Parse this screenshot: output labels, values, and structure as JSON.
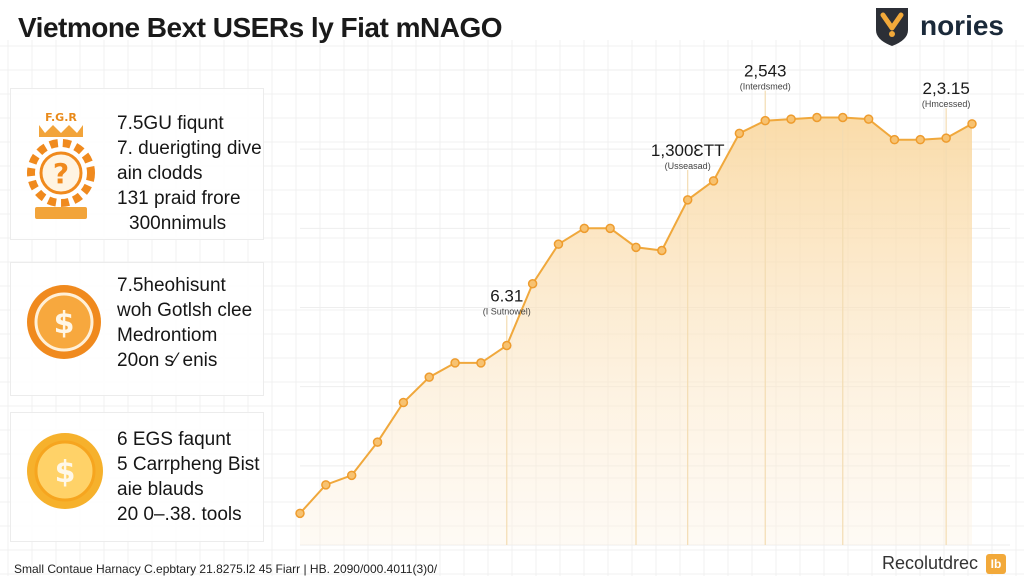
{
  "header": {
    "title": "Vietmone Bext USERs ly Fiat mNAGO",
    "brand": "nories"
  },
  "sidebar": {
    "panels": [
      {
        "icon": "gear-dollar-icon",
        "lines": [
          "7.5GU fiqunt",
          "7. duerigting dive",
          "ain clodds",
          "131 praid frore",
          "300nnimuls"
        ]
      },
      {
        "icon": "coin-icon",
        "lines": [
          "7.5heohisunt",
          "woh Gotlsh clee",
          "Medrontiom",
          "20on s⁄ enis"
        ]
      },
      {
        "icon": "dollar-coin-icon",
        "lines": [
          "6 EGS faqunt",
          "5 Carrpheng Bist",
          "aie blauds",
          "20 0–.38. tools"
        ]
      }
    ]
  },
  "footer": {
    "left": "Small Contaue Harnacy C.epbtary 21.8275.l2 45 Fiarr | HB. 2090/000.4011(3)0/",
    "right": "Recolutdrec",
    "badge": "Ib"
  },
  "colors": {
    "accent": "#f0a83c",
    "fill": "#fbe0b4"
  },
  "chart_data": {
    "type": "area",
    "title": "Vietmone Bext USERs ly Fiat mNAGO",
    "xlabel": "",
    "ylabel": "",
    "x": [
      0,
      1,
      2,
      3,
      4,
      5,
      6,
      7,
      8,
      9,
      10,
      11,
      12,
      13,
      14,
      15,
      16,
      17,
      18,
      19,
      20,
      21,
      22,
      23,
      24,
      25,
      26
    ],
    "values": [
      200,
      380,
      440,
      650,
      900,
      1060,
      1150,
      1150,
      1260,
      1650,
      1900,
      2000,
      2000,
      1880,
      1860,
      2180,
      2300,
      2600,
      2680,
      2690,
      2700,
      2700,
      2690,
      2560,
      2560,
      2570,
      2660
    ],
    "ylim": [
      0,
      3000
    ],
    "grid": true,
    "annotations": [
      {
        "index": 8,
        "value": "6.31",
        "sub": "(I Sutnowel)"
      },
      {
        "index": 15,
        "value": "1,300ƐTT",
        "sub": "(Usseasad)"
      },
      {
        "index": 18,
        "value": "2,543",
        "sub": "(Interdsmed)"
      },
      {
        "index": 25,
        "value": "2,3.15",
        "sub": "(Hmcessed)"
      }
    ]
  }
}
